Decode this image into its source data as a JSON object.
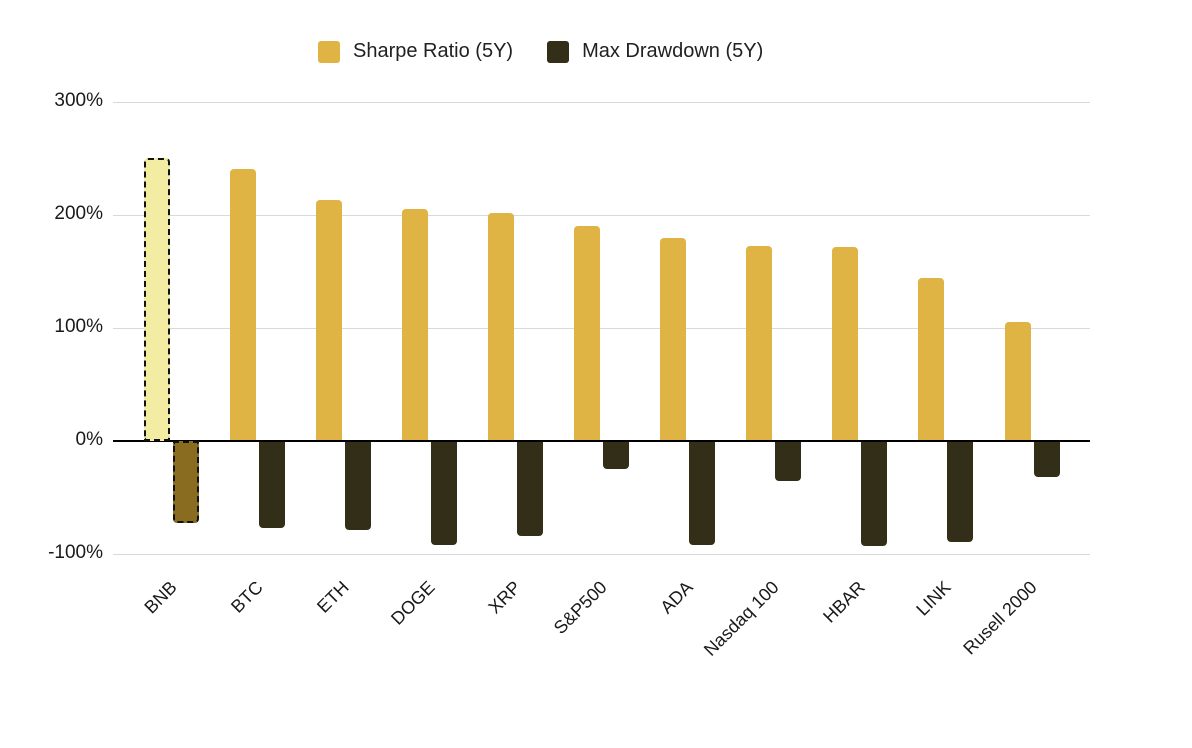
{
  "legend": {
    "items": [
      {
        "label": "Sharpe Ratio (5Y)",
        "color": "#DFB344"
      },
      {
        "label": "Max Drawdown (5Y)",
        "color": "#332E17"
      }
    ]
  },
  "chart_data": {
    "type": "bar",
    "title": "",
    "categories": [
      "BNB",
      "BTC",
      "ETH",
      "DOGE",
      "XRP",
      "S&P500",
      "ADA",
      "Nasdaq 100",
      "HBAR",
      "LINK",
      "Rusell 2000"
    ],
    "series": [
      {
        "name": "Sharpe Ratio (5Y)",
        "color": "#DFB344",
        "values": [
          250,
          241,
          213,
          205,
          202,
          190,
          180,
          173,
          172,
          144,
          105
        ]
      },
      {
        "name": "Max Drawdown (5Y)",
        "color": "#332E17",
        "values": [
          -73,
          -77,
          -79,
          -92,
          -84,
          -25,
          -92,
          -35,
          -93,
          -89,
          -32
        ]
      }
    ],
    "highlight": {
      "category": "BNB",
      "sharpe_fill": "#F3EDA4",
      "drawdown_fill": "#8A6C20",
      "border_style": "dashed black"
    },
    "y_axis": {
      "tick_labels": [
        "300%",
        "200%",
        "100%",
        "0%",
        "-100%"
      ],
      "tick_values": [
        300,
        200,
        100,
        0,
        -100
      ],
      "ylim": [
        -100,
        300
      ],
      "unit": "%"
    },
    "x_axis": {
      "label_rotation_deg": -45
    },
    "grid": true,
    "legend_position": "top",
    "colors": {
      "gridline": "#d9d9d9",
      "zero_axis": "#000000",
      "text": "#1a1a1a"
    }
  }
}
